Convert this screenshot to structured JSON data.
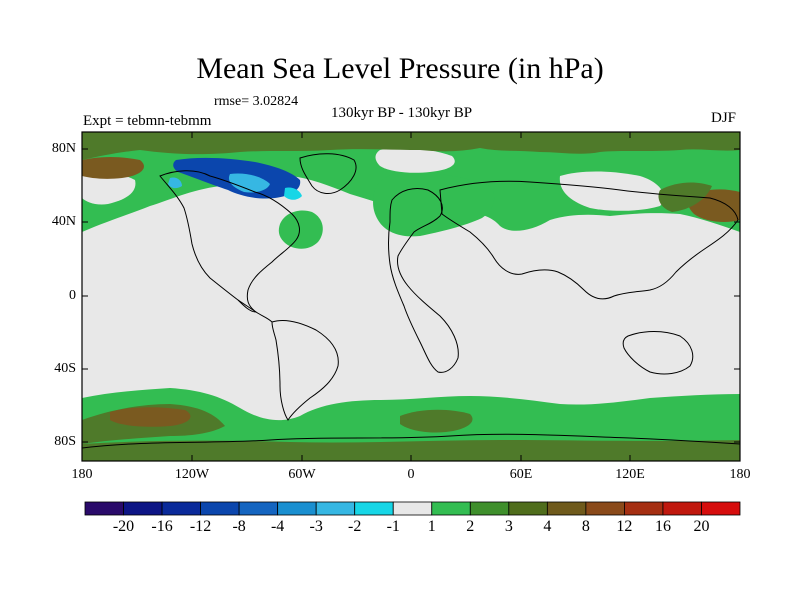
{
  "title": "Mean Sea Level Pressure (in hPa)",
  "rmse_label": "rmse= 3.02824",
  "experiment_label": "Expt = tebmn-tebmm",
  "subtitle": "130kyr BP - 130kyr BP",
  "season": "DJF",
  "lat_ticks": [
    "80N",
    "40N",
    "0",
    "40S",
    "80S"
  ],
  "lon_ticks": [
    "180",
    "120W",
    "60W",
    "0",
    "60E",
    "120E",
    "180"
  ],
  "colorbar": {
    "labels": [
      "-20",
      "-16",
      "-12",
      "-8",
      "-4",
      "-3",
      "-2",
      "-1",
      "1",
      "2",
      "3",
      "4",
      "8",
      "12",
      "16",
      "20"
    ],
    "colors": [
      "#2a0a6a",
      "#0d1585",
      "#0a2a9a",
      "#0b46ad",
      "#1565c0",
      "#1a8fd0",
      "#36b7e3",
      "#17d6e6",
      "#e8e8e8",
      "#33bd52",
      "#3f8f2c",
      "#4f6d1c",
      "#6f5a1c",
      "#8a4a1a",
      "#a52f12",
      "#c0180e",
      "#d60d0d"
    ]
  },
  "colors": {
    "land_background": "#e8e8e8",
    "positive_band": "#33bd52",
    "dark_green": "#4f7a2a",
    "brown": "#7a5a20",
    "negative_blue": "#0b46ad",
    "negative_cyan": "#36b7e3"
  }
}
